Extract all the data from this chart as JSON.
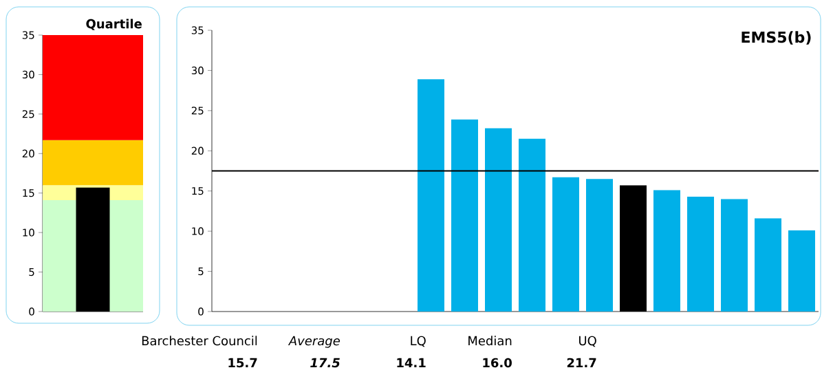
{
  "chart_data": [
    {
      "type": "bar",
      "title": "Quartile",
      "categories": [
        null
      ],
      "values": [
        15.7
      ],
      "color": "#000000",
      "ylim": [
        0,
        35
      ],
      "yticks": [
        0,
        5,
        10,
        15,
        20,
        25,
        30,
        35
      ],
      "bands": [
        {
          "axis": "y",
          "from": 0,
          "to": 14.1,
          "color": "#ccffcc"
        },
        {
          "axis": "y",
          "from": 14.1,
          "to": 16.0,
          "color": "#ffff99"
        },
        {
          "axis": "y",
          "from": 16.0,
          "to": 21.7,
          "color": "#ffcc00"
        },
        {
          "axis": "y",
          "from": 21.7,
          "to": 35,
          "color": "#ff0000"
        }
      ]
    },
    {
      "type": "bar",
      "title": "EMS5(b)",
      "categories": [
        null,
        null,
        null,
        null,
        null,
        null,
        null,
        null,
        null,
        null,
        null,
        null,
        null,
        null,
        null,
        null,
        null,
        null
      ],
      "values": [
        null,
        null,
        null,
        null,
        null,
        null,
        28.9,
        23.9,
        22.8,
        21.5,
        16.7,
        16.5,
        15.7,
        15.1,
        14.3,
        14.0,
        11.6,
        10.1
      ],
      "colors": [
        "#00b0e8",
        "#00b0e8",
        "#00b0e8",
        "#00b0e8",
        "#00b0e8",
        "#00b0e8",
        "#00b0e8",
        "#00b0e8",
        "#00b0e8",
        "#00b0e8",
        "#00b0e8",
        "#00b0e8",
        "#000000",
        "#00b0e8",
        "#00b0e8",
        "#00b0e8",
        "#00b0e8",
        "#00b0e8"
      ],
      "ylim": [
        0,
        35
      ],
      "yticks": [
        0,
        5,
        10,
        15,
        20,
        25,
        30,
        35
      ],
      "ref_lines": [
        {
          "axis": "y",
          "value": 17.5,
          "color": "#000000"
        }
      ],
      "annotations": [
        "Barchester Council",
        "Average",
        "LQ",
        "Median",
        "UQ",
        "15.7",
        "17.5",
        "14.1",
        "16.0",
        "21.7"
      ]
    }
  ]
}
